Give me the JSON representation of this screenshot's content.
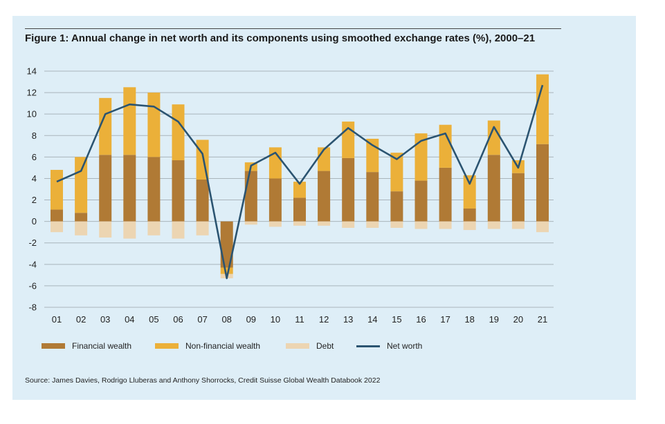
{
  "title": "Figure 1: Annual change in net worth and its components using smoothed exchange rates (%), 2000–21",
  "source": "Source: James Davies, Rodrigo Lluberas and Anthony Shorrocks, Credit Suisse Global Wealth Databook 2022",
  "colors": {
    "panel": "#deeef7",
    "financial": "#b07a35",
    "nonfinancial": "#ebb039",
    "debt": "#ecd5b2",
    "networth": "#2b5471",
    "grid": "#a9b4bb"
  },
  "legend": [
    {
      "key": "financial",
      "label": "Financial wealth"
    },
    {
      "key": "nonfinancial",
      "label": "Non-financial wealth"
    },
    {
      "key": "debt",
      "label": "Debt"
    },
    {
      "key": "networth",
      "label": "Net worth"
    }
  ],
  "chart_data": {
    "type": "bar",
    "title": "Figure 1: Annual change in net worth and its components using smoothed exchange rates (%), 2000–21",
    "categories": [
      "01",
      "02",
      "03",
      "04",
      "05",
      "06",
      "07",
      "08",
      "09",
      "10",
      "11",
      "12",
      "13",
      "14",
      "15",
      "16",
      "17",
      "18",
      "19",
      "20",
      "21"
    ],
    "ylim": [
      -8,
      14
    ],
    "yticks": [
      "14",
      "12",
      "10",
      "8",
      "6",
      "4",
      "2",
      "0",
      "-2",
      "-4",
      "-6",
      "-8"
    ],
    "series": [
      {
        "name": "Financial wealth",
        "type": "bar",
        "values": [
          1.1,
          0.8,
          6.2,
          6.2,
          6.0,
          5.7,
          3.9,
          -4.3,
          4.7,
          4.0,
          2.2,
          4.7,
          5.9,
          4.6,
          2.8,
          3.8,
          5.0,
          1.2,
          6.2,
          4.5,
          7.2
        ]
      },
      {
        "name": "Non-financial wealth",
        "type": "bar",
        "values": [
          3.7,
          5.2,
          5.3,
          6.3,
          6.0,
          5.2,
          3.7,
          -0.6,
          0.8,
          2.9,
          1.5,
          2.2,
          3.4,
          3.1,
          3.6,
          4.4,
          4.0,
          3.1,
          3.2,
          1.2,
          6.5
        ]
      },
      {
        "name": "Debt",
        "type": "bar",
        "values": [
          -1.0,
          -1.3,
          -1.5,
          -1.6,
          -1.3,
          -1.6,
          -1.3,
          -0.4,
          -0.3,
          -0.5,
          -0.4,
          -0.4,
          -0.6,
          -0.6,
          -0.6,
          -0.7,
          -0.7,
          -0.8,
          -0.7,
          -0.7,
          -1.0
        ]
      },
      {
        "name": "Net worth",
        "type": "line",
        "values": [
          3.7,
          4.7,
          10.0,
          10.9,
          10.7,
          9.3,
          6.3,
          -5.3,
          5.2,
          6.4,
          3.5,
          6.7,
          8.7,
          7.1,
          5.8,
          7.5,
          8.2,
          3.5,
          8.8,
          5.0,
          12.7
        ]
      }
    ]
  }
}
